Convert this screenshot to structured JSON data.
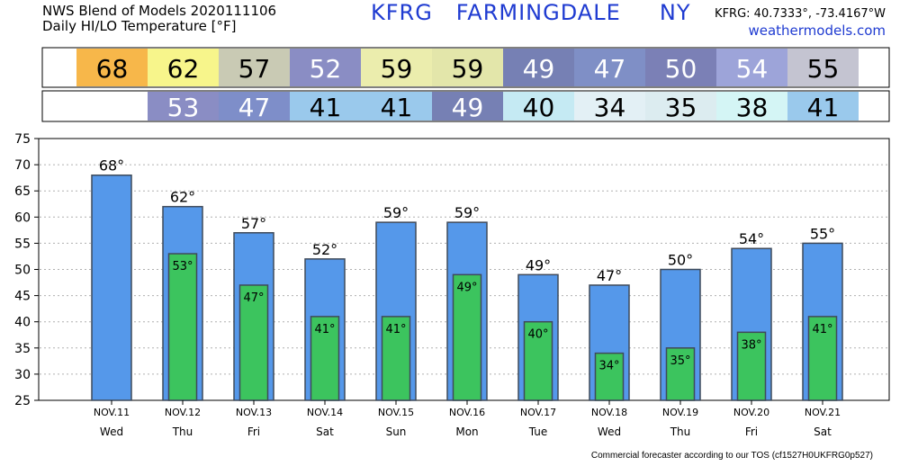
{
  "header": {
    "line1": "NWS Blend of Models 2020111106",
    "line2": "Daily HI/LO Temperature [°F]",
    "station_title": "KFRG   FARMINGDALE     NY",
    "coords": "KFRG: 40.7333°, -73.4167°W",
    "site": "weathermodels.com"
  },
  "footer": {
    "note": "Commercial forecaster according to our TOS (cf1527H0UKFRG0p527)"
  },
  "colors": {
    "high_bar": "#5598ea",
    "low_bar": "#3cc45e",
    "bar_edge": "#3f4a5a"
  },
  "chart_data": {
    "type": "bar",
    "categories": [
      "NOV.11",
      "NOV.12",
      "NOV.13",
      "NOV.14",
      "NOV.15",
      "NOV.16",
      "NOV.17",
      "NOV.18",
      "NOV.19",
      "NOV.20",
      "NOV.21"
    ],
    "weekdays": [
      "Wed",
      "Thu",
      "Fri",
      "Sat",
      "Sun",
      "Mon",
      "Tue",
      "Wed",
      "Thu",
      "Fri",
      "Sat"
    ],
    "ylim": [
      25,
      75
    ],
    "yticks": [
      25,
      30,
      35,
      40,
      45,
      50,
      55,
      60,
      65,
      70,
      75
    ],
    "grid": true,
    "degree_symbol": "°",
    "series": [
      {
        "values": [
          68,
          62,
          57,
          52,
          59,
          59,
          49,
          47,
          50,
          54,
          55
        ]
      },
      {
        "values": [
          null,
          53,
          47,
          41,
          41,
          49,
          40,
          34,
          35,
          38,
          41
        ]
      }
    ],
    "high_box_colors": [
      "#f7b74a",
      "#f7f58b",
      "#c9cab4",
      "#8a8dc4",
      "#ebedad",
      "#e3e6aa",
      "#7680b4",
      "#7f8fc6",
      "#7b80b6",
      "#9da4d9",
      "#c4c4d1"
    ],
    "low_box_colors": [
      null,
      "#8a8dc4",
      "#7e8ec9",
      "#9ac9ec",
      "#9ac9ec",
      "#7680b4",
      "#c5eaf3",
      "#e3f0f5",
      "#dcecf0",
      "#d4f5f5",
      "#9ac9ec"
    ]
  }
}
